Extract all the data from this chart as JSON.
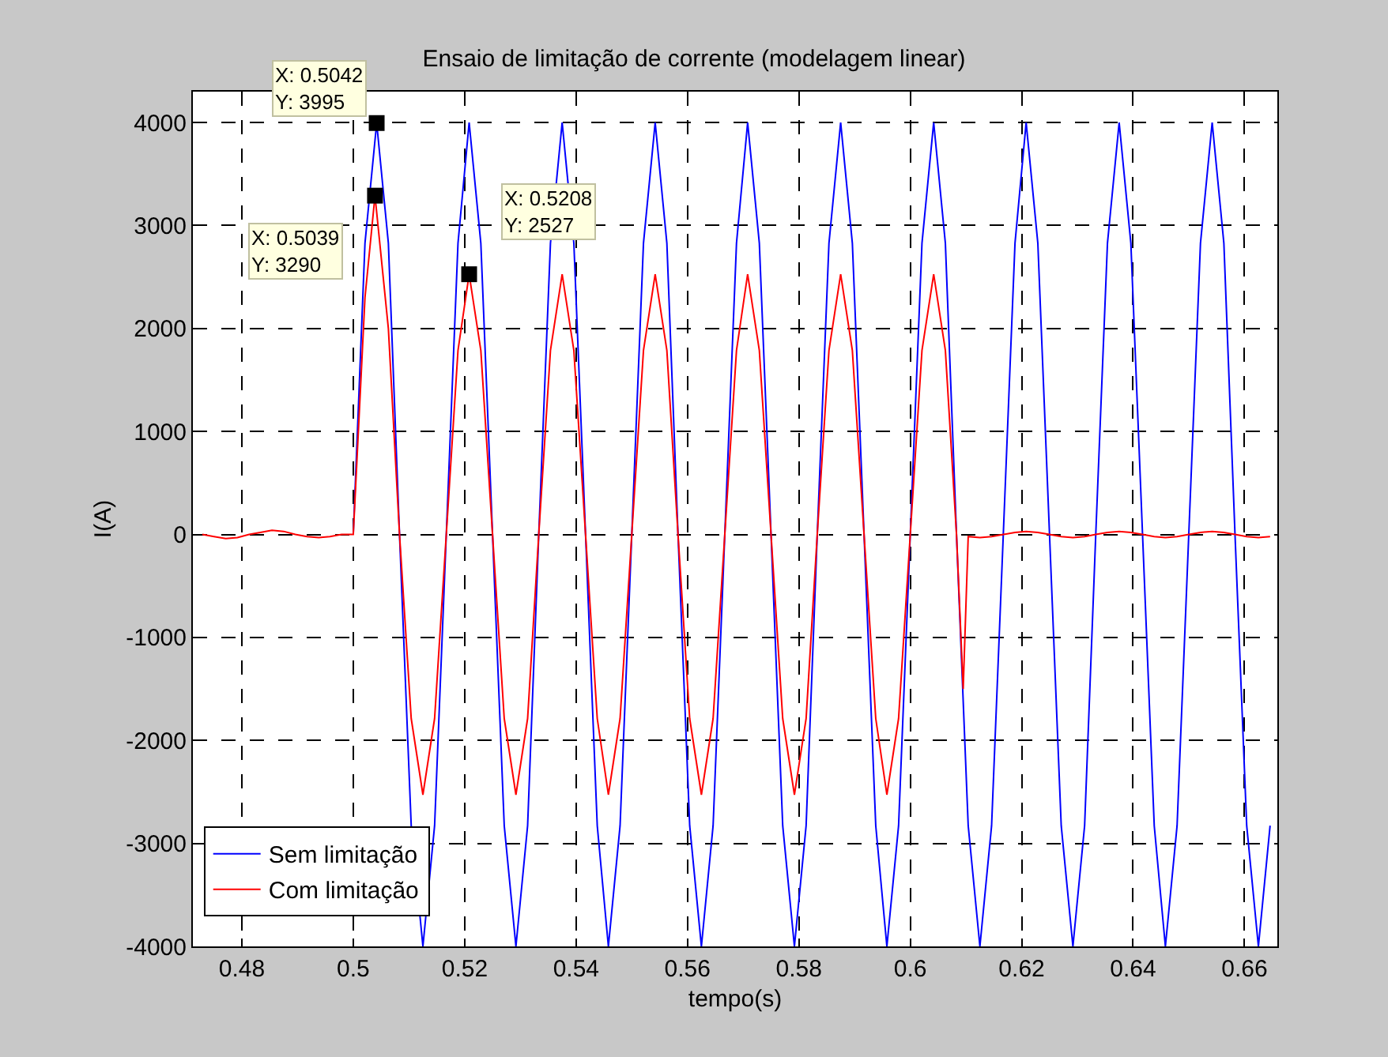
{
  "chart_data": {
    "type": "line",
    "title": "Ensaio de limitação de corrente (modelagem linear)",
    "xlabel": "tempo(s)",
    "ylabel": "I(A)",
    "xlim": [
      0.4712,
      0.6659
    ],
    "ylim": [
      -4000,
      4300
    ],
    "xticks": [
      0.48,
      0.5,
      0.52,
      0.54,
      0.56,
      0.58,
      0.6,
      0.62,
      0.64,
      0.66
    ],
    "yticks": [
      -4000,
      -3000,
      -2000,
      -1000,
      0,
      1000,
      2000,
      3000,
      4000
    ],
    "grid": true,
    "legend": "bottom left",
    "marker": "none",
    "line_style": "solid",
    "series": [
      {
        "name": "Sem limitação",
        "color": "#0000ff",
        "x": [
          0.5,
          0.5021,
          0.5042,
          0.5063,
          0.5083,
          0.5104,
          0.5125,
          0.5146,
          0.5167,
          0.5188,
          0.5208,
          0.5229,
          0.525,
          0.5271,
          0.5292,
          0.5313,
          0.5333,
          0.5354,
          0.5375,
          0.5396,
          0.5417,
          0.5438,
          0.5458,
          0.5479,
          0.55,
          0.5521,
          0.5542,
          0.5563,
          0.5583,
          0.5604,
          0.5625,
          0.5646,
          0.5667,
          0.5688,
          0.5708,
          0.5729,
          0.575,
          0.5771,
          0.5792,
          0.5813,
          0.5833,
          0.5854,
          0.5875,
          0.5896,
          0.5917,
          0.5938,
          0.5958,
          0.5979,
          0.6,
          0.6021,
          0.6042,
          0.6063,
          0.6083,
          0.6104,
          0.6125,
          0.6146,
          0.6167,
          0.6188,
          0.6208,
          0.6229,
          0.625,
          0.6271,
          0.6292,
          0.6313,
          0.6333,
          0.6354,
          0.6375,
          0.6396,
          0.6417,
          0.6438,
          0.6458,
          0.6479,
          0.65,
          0.6521,
          0.6542,
          0.6563,
          0.6583,
          0.6604,
          0.6625,
          0.6646
        ],
        "values": [
          0,
          2828,
          3995,
          2828,
          0,
          -2828,
          -4000,
          -2828,
          0,
          2828,
          4000,
          2828,
          0,
          -2828,
          -4000,
          -2828,
          0,
          2828,
          4000,
          2828,
          0,
          -2828,
          -4000,
          -2828,
          0,
          2828,
          4000,
          2828,
          0,
          -2828,
          -4000,
          -2828,
          0,
          2828,
          4000,
          2828,
          0,
          -2828,
          -4000,
          -2828,
          0,
          2828,
          4000,
          2828,
          0,
          -2828,
          -4000,
          -2828,
          0,
          2828,
          4000,
          2828,
          0,
          -2828,
          -4000,
          -2828,
          0,
          2828,
          4000,
          2828,
          0,
          -2828,
          -4000,
          -2828,
          0,
          2828,
          4000,
          2828,
          0,
          -2828,
          -4000,
          -2828,
          0,
          2828,
          4000,
          2828,
          0,
          -2828,
          -4000,
          -2828
        ]
      },
      {
        "name": "Com limitação",
        "color": "#ff0000",
        "x": [
          0.4729,
          0.475,
          0.4771,
          0.4792,
          0.4813,
          0.4833,
          0.4854,
          0.4875,
          0.4896,
          0.4917,
          0.4938,
          0.4958,
          0.4979,
          0.5,
          0.5021,
          0.5039,
          0.5063,
          0.5083,
          0.5104,
          0.5125,
          0.5146,
          0.5167,
          0.5188,
          0.5208,
          0.5229,
          0.525,
          0.5271,
          0.5292,
          0.5313,
          0.5333,
          0.5354,
          0.5375,
          0.5396,
          0.5417,
          0.5438,
          0.5458,
          0.5479,
          0.55,
          0.5521,
          0.5542,
          0.5563,
          0.5583,
          0.5604,
          0.5625,
          0.5646,
          0.5667,
          0.5688,
          0.5708,
          0.5729,
          0.575,
          0.5771,
          0.5792,
          0.5813,
          0.5833,
          0.5854,
          0.5875,
          0.5896,
          0.5917,
          0.5938,
          0.5958,
          0.5979,
          0.6,
          0.6021,
          0.6042,
          0.6063,
          0.6083,
          0.6095,
          0.6104,
          0.6125,
          0.6146,
          0.6167,
          0.6188,
          0.6208,
          0.6229,
          0.625,
          0.6271,
          0.6292,
          0.6313,
          0.6333,
          0.6354,
          0.6375,
          0.6396,
          0.6417,
          0.6438,
          0.6458,
          0.6479,
          0.65,
          0.6521,
          0.6542,
          0.6563,
          0.6583,
          0.6604,
          0.6625,
          0.6646
        ],
        "values": [
          0,
          -20,
          -40,
          -30,
          0,
          20,
          40,
          30,
          0,
          -20,
          -30,
          -20,
          0,
          0,
          2300,
          3290,
          2000,
          0,
          -1787,
          -2527,
          -1787,
          0,
          1787,
          2527,
          1787,
          0,
          -1787,
          -2527,
          -1787,
          0,
          1787,
          2527,
          1787,
          0,
          -1787,
          -2527,
          -1787,
          0,
          1787,
          2527,
          1787,
          0,
          -1787,
          -2527,
          -1787,
          0,
          1787,
          2527,
          1787,
          0,
          -1787,
          -2527,
          -1787,
          0,
          1787,
          2527,
          1787,
          0,
          -1787,
          -2527,
          -1787,
          0,
          1787,
          2527,
          1787,
          0,
          -1500,
          -20,
          -30,
          -20,
          0,
          20,
          30,
          20,
          0,
          -20,
          -30,
          -20,
          0,
          20,
          30,
          20,
          0,
          -20,
          -30,
          -20,
          0,
          20,
          30,
          20,
          0,
          -20,
          -30,
          -20
        ]
      }
    ],
    "annotations": [
      {
        "text": "X: 0.5042\nY: 3995",
        "x": 0.5042,
        "y": 3995
      },
      {
        "text": "X: 0.5039\nY: 3290",
        "x": 0.5039,
        "y": 3290
      },
      {
        "text": "X: 0.5208\nY: 2527",
        "x": 0.5208,
        "y": 2527
      }
    ]
  }
}
